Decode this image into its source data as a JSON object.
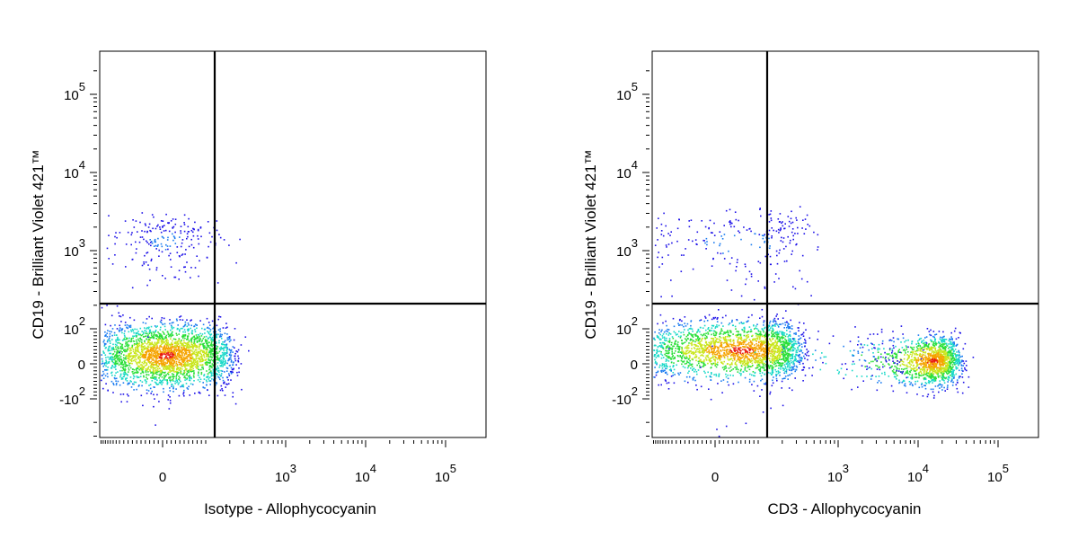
{
  "chart_data": [
    {
      "type": "scatter",
      "plot_kind": "flow cytometry density dot plot (biexponential axes)",
      "xlabel": "Isotype - Allophycocyanin",
      "ylabel": "CD19 - Brilliant Violet 421™",
      "x_ticks": [
        {
          "value": 0,
          "base": "0",
          "exp": ""
        },
        {
          "value": 1000,
          "base": "10",
          "exp": "3"
        },
        {
          "value": 10000,
          "base": "10",
          "exp": "4"
        },
        {
          "value": 100000,
          "base": "10",
          "exp": "5"
        }
      ],
      "y_ticks": [
        {
          "value": -100,
          "base": "-10",
          "exp": "2"
        },
        {
          "value": 0,
          "base": "0",
          "exp": ""
        },
        {
          "value": 100,
          "base": "10",
          "exp": "2"
        },
        {
          "value": 1000,
          "base": "10",
          "exp": "3"
        },
        {
          "value": 10000,
          "base": "10",
          "exp": "4"
        },
        {
          "value": 100000,
          "base": "10",
          "exp": "5"
        }
      ],
      "gates": {
        "x": 240,
        "y": 220
      },
      "populations": [
        {
          "x_center": 10,
          "x_spread": 90,
          "y_center": 25,
          "y_spread": 45,
          "count": 2600,
          "density": "high"
        },
        {
          "x_center": 5,
          "x_spread": 70,
          "y_center": 1400,
          "y_spread": 700,
          "count": 220,
          "density": "low"
        }
      ],
      "density_colormap": [
        "#1c10e8",
        "#1a7cf0",
        "#19d9c8",
        "#2cdf3a",
        "#c9e61c",
        "#f5a400",
        "#e81a10"
      ]
    },
    {
      "type": "scatter",
      "plot_kind": "flow cytometry density dot plot (biexponential axes)",
      "xlabel": "CD3 - Allophycocyanin",
      "ylabel": "CD19 - Brilliant Violet 421™",
      "x_ticks": [
        {
          "value": 0,
          "base": "0",
          "exp": ""
        },
        {
          "value": 1000,
          "base": "10",
          "exp": "3"
        },
        {
          "value": 10000,
          "base": "10",
          "exp": "4"
        },
        {
          "value": 100000,
          "base": "10",
          "exp": "5"
        }
      ],
      "y_ticks": [
        {
          "value": -100,
          "base": "-10",
          "exp": "2"
        },
        {
          "value": 0,
          "base": "0",
          "exp": ""
        },
        {
          "value": 100,
          "base": "10",
          "exp": "2"
        },
        {
          "value": 1000,
          "base": "10",
          "exp": "3"
        },
        {
          "value": 10000,
          "base": "10",
          "exp": "4"
        },
        {
          "value": 100000,
          "base": "10",
          "exp": "5"
        }
      ],
      "gates": {
        "x": 240,
        "y": 220
      },
      "populations": [
        {
          "x_center": 60,
          "x_spread": 130,
          "y_center": 40,
          "y_spread": 40,
          "count": 2300,
          "density": "high"
        },
        {
          "x_center": 15000,
          "x_spread": 9000,
          "y_center": 10,
          "y_spread": 35,
          "count": 1400,
          "density": "high"
        },
        {
          "x_center": 900,
          "x_spread": 4000,
          "y_center": 30,
          "y_spread": 45,
          "count": 160,
          "density": "low"
        },
        {
          "x_center": 60,
          "x_spread": 180,
          "y_center": 1300,
          "y_spread": 900,
          "count": 280,
          "density": "low"
        }
      ],
      "density_colormap": [
        "#1c10e8",
        "#1a7cf0",
        "#19d9c8",
        "#2cdf3a",
        "#c9e61c",
        "#f5a400",
        "#e81a10"
      ]
    }
  ]
}
